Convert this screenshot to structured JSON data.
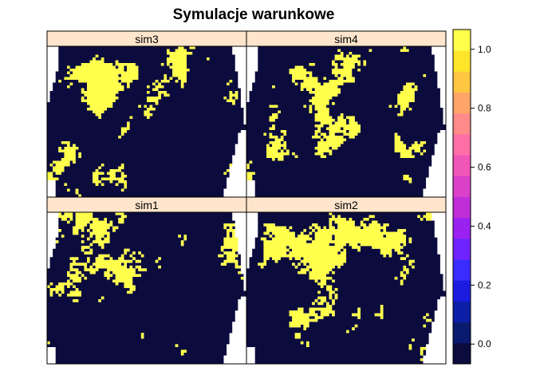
{
  "chart_data": {
    "type": "heatmap",
    "title": "Symulacje warunkowe",
    "layout": "2x2 trellis panels",
    "panels": [
      "sim3",
      "sim4",
      "sim1",
      "sim2"
    ],
    "value_range": [
      0,
      1
    ],
    "observed_values": [
      0,
      1
    ],
    "colorkey": {
      "ticks": [
        0.0,
        0.2,
        0.4,
        0.6,
        0.8,
        1.0
      ],
      "tick_labels": [
        "0.0",
        "0.2",
        "0.4",
        "0.6",
        "0.8",
        "1.0"
      ],
      "range": [
        -0.067,
        1.067
      ],
      "n_bins": 16,
      "palette": "topo-like: navy → blue → purple → magenta → pink → orange → yellow"
    },
    "colors": {
      "low": "#0B0B3D",
      "high": "#FFFF4C",
      "strip_bg": "#FFE5CC",
      "missing": "#FFFFFF"
    },
    "grid": false,
    "legend_placement": "right"
  }
}
